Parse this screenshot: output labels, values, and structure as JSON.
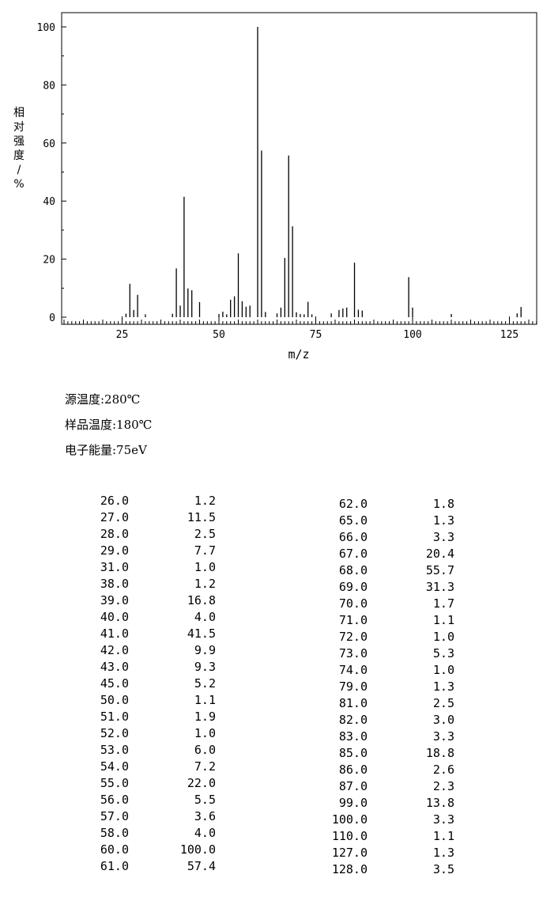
{
  "chart_data": {
    "type": "bar",
    "title": "",
    "xlabel": "m/z",
    "ylabel": "相对强度/%",
    "xlim": [
      9,
      133
    ],
    "ylim": [
      0,
      105
    ],
    "x_ticks": [
      25,
      50,
      75,
      100,
      125
    ],
    "y_ticks": [
      0,
      20,
      40,
      60,
      80,
      100
    ],
    "grid": false,
    "peaks": [
      [
        26.0,
        1.2
      ],
      [
        27.0,
        11.5
      ],
      [
        28.0,
        2.5
      ],
      [
        29.0,
        7.7
      ],
      [
        31.0,
        1.0
      ],
      [
        38.0,
        1.2
      ],
      [
        39.0,
        16.8
      ],
      [
        40.0,
        4.0
      ],
      [
        41.0,
        41.5
      ],
      [
        42.0,
        9.9
      ],
      [
        43.0,
        9.3
      ],
      [
        45.0,
        5.2
      ],
      [
        50.0,
        1.1
      ],
      [
        51.0,
        1.9
      ],
      [
        52.0,
        1.0
      ],
      [
        53.0,
        6.0
      ],
      [
        54.0,
        7.2
      ],
      [
        55.0,
        22.0
      ],
      [
        56.0,
        5.5
      ],
      [
        57.0,
        3.6
      ],
      [
        58.0,
        4.0
      ],
      [
        60.0,
        100.0
      ],
      [
        61.0,
        57.4
      ],
      [
        62.0,
        1.8
      ],
      [
        65.0,
        1.3
      ],
      [
        66.0,
        3.3
      ],
      [
        67.0,
        20.4
      ],
      [
        68.0,
        55.7
      ],
      [
        69.0,
        31.3
      ],
      [
        70.0,
        1.7
      ],
      [
        71.0,
        1.1
      ],
      [
        72.0,
        1.0
      ],
      [
        73.0,
        5.3
      ],
      [
        74.0,
        1.0
      ],
      [
        79.0,
        1.3
      ],
      [
        81.0,
        2.5
      ],
      [
        82.0,
        3.0
      ],
      [
        83.0,
        3.3
      ],
      [
        85.0,
        18.8
      ],
      [
        86.0,
        2.6
      ],
      [
        87.0,
        2.3
      ],
      [
        99.0,
        13.8
      ],
      [
        100.0,
        3.3
      ],
      [
        110.0,
        1.1
      ],
      [
        127.0,
        1.3
      ],
      [
        128.0,
        3.5
      ]
    ]
  },
  "conditions": {
    "source_temp": "源温度:280℃",
    "sample_temp": "样品温度:180℃",
    "electron_energy": "电子能量:75eV"
  },
  "table_left": [
    [
      "26.0",
      "1.2"
    ],
    [
      "27.0",
      "11.5"
    ],
    [
      "28.0",
      "2.5"
    ],
    [
      "29.0",
      "7.7"
    ],
    [
      "31.0",
      "1.0"
    ],
    [
      "38.0",
      "1.2"
    ],
    [
      "39.0",
      "16.8"
    ],
    [
      "40.0",
      "4.0"
    ],
    [
      "41.0",
      "41.5"
    ],
    [
      "42.0",
      "9.9"
    ],
    [
      "43.0",
      "9.3"
    ],
    [
      "45.0",
      "5.2"
    ],
    [
      "50.0",
      "1.1"
    ],
    [
      "51.0",
      "1.9"
    ],
    [
      "52.0",
      "1.0"
    ],
    [
      "53.0",
      "6.0"
    ],
    [
      "54.0",
      "7.2"
    ],
    [
      "55.0",
      "22.0"
    ],
    [
      "56.0",
      "5.5"
    ],
    [
      "57.0",
      "3.6"
    ],
    [
      "58.0",
      "4.0"
    ],
    [
      "60.0",
      "100.0"
    ],
    [
      "61.0",
      "57.4"
    ]
  ],
  "table_right": [
    [
      "62.0",
      "1.8"
    ],
    [
      "65.0",
      "1.3"
    ],
    [
      "66.0",
      "3.3"
    ],
    [
      "67.0",
      "20.4"
    ],
    [
      "68.0",
      "55.7"
    ],
    [
      "69.0",
      "31.3"
    ],
    [
      "70.0",
      "1.7"
    ],
    [
      "71.0",
      "1.1"
    ],
    [
      "72.0",
      "1.0"
    ],
    [
      "73.0",
      "5.3"
    ],
    [
      "74.0",
      "1.0"
    ],
    [
      "79.0",
      "1.3"
    ],
    [
      "81.0",
      "2.5"
    ],
    [
      "82.0",
      "3.0"
    ],
    [
      "83.0",
      "3.3"
    ],
    [
      "85.0",
      "18.8"
    ],
    [
      "86.0",
      "2.6"
    ],
    [
      "87.0",
      "2.3"
    ],
    [
      "99.0",
      "13.8"
    ],
    [
      "100.0",
      "3.3"
    ],
    [
      "110.0",
      "1.1"
    ],
    [
      "127.0",
      "1.3"
    ],
    [
      "128.0",
      "3.5"
    ]
  ]
}
